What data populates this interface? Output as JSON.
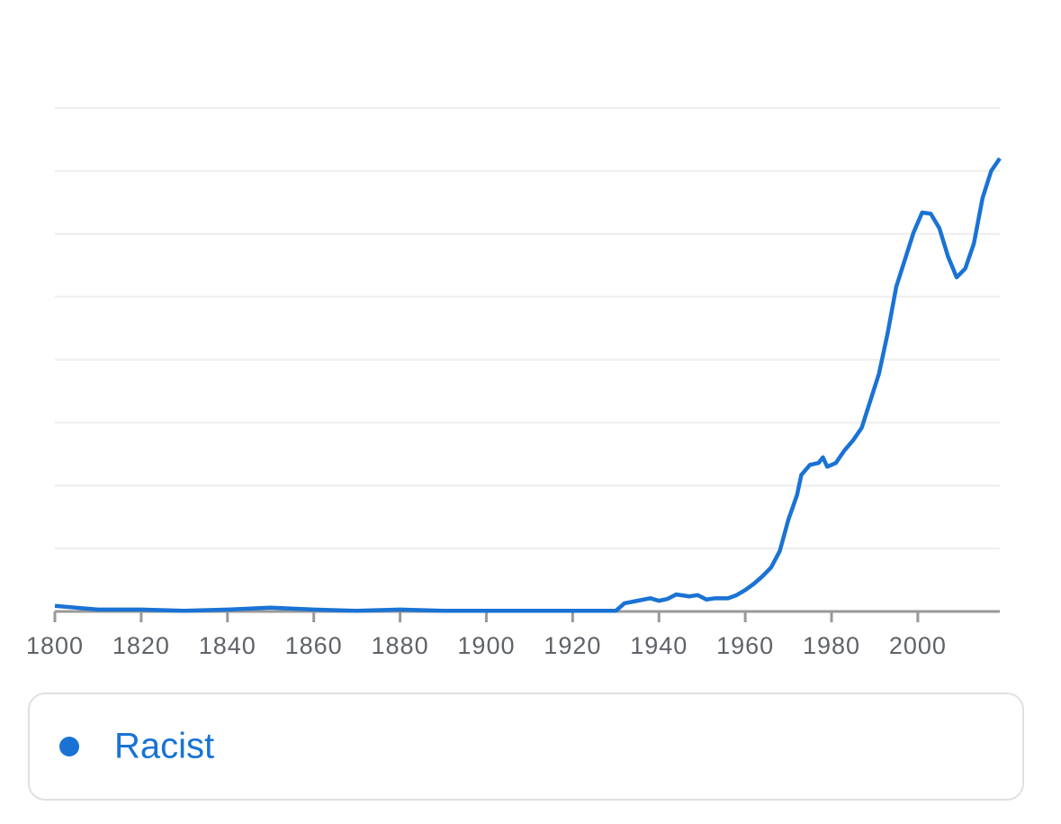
{
  "chart_data": {
    "type": "line",
    "x": [
      1800,
      1805,
      1810,
      1820,
      1830,
      1840,
      1850,
      1860,
      1870,
      1880,
      1890,
      1900,
      1910,
      1920,
      1930,
      1932,
      1935,
      1938,
      1940,
      1942,
      1944,
      1947,
      1949,
      1951,
      1953,
      1956,
      1958,
      1960,
      1962,
      1964,
      1966,
      1968,
      1970,
      1972,
      1973,
      1975,
      1977,
      1978,
      1979,
      1981,
      1983,
      1985,
      1987,
      1989,
      1991,
      1993,
      1995,
      1997,
      1999,
      2001,
      2003,
      2005,
      2007,
      2009,
      2011,
      2013,
      2015,
      2017,
      2019
    ],
    "series": [
      {
        "name": "Racist",
        "color": "#1a73d4",
        "values": [
          0.09,
          0.06,
          0.03,
          0.03,
          0.01,
          0.03,
          0.06,
          0.03,
          0.01,
          0.03,
          0.01,
          0.01,
          0.01,
          0.01,
          0.01,
          0.13,
          0.17,
          0.21,
          0.17,
          0.2,
          0.27,
          0.24,
          0.26,
          0.19,
          0.21,
          0.21,
          0.26,
          0.34,
          0.44,
          0.56,
          0.7,
          0.96,
          1.46,
          1.85,
          2.17,
          2.33,
          2.36,
          2.45,
          2.3,
          2.36,
          2.56,
          2.72,
          2.92,
          3.35,
          3.78,
          4.42,
          5.16,
          5.59,
          6.02,
          6.34,
          6.32,
          6.09,
          5.64,
          5.31,
          5.45,
          5.85,
          6.57,
          7.0,
          7.2
        ]
      }
    ],
    "xlim": [
      1800,
      2019
    ],
    "xticks": [
      1800,
      1820,
      1840,
      1860,
      1880,
      1900,
      1920,
      1940,
      1960,
      1980,
      2000
    ],
    "ylim": [
      0,
      8
    ],
    "yticks": [
      1,
      2,
      3,
      4,
      5,
      6,
      7,
      8
    ],
    "show_ytick_labels": false,
    "grid": true
  }
}
